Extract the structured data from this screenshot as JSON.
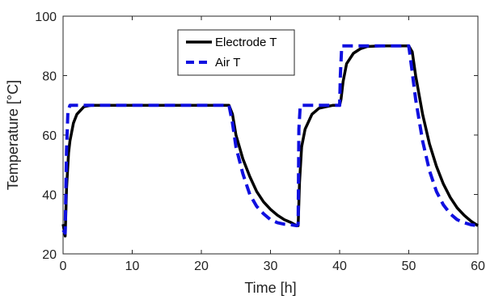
{
  "chart_data": {
    "type": "line",
    "title": "",
    "xlabel": "Time [h]",
    "ylabel": "Temperature [°C]",
    "xlim": [
      0,
      60
    ],
    "ylim": [
      20,
      100
    ],
    "xticks": [
      0,
      10,
      20,
      30,
      40,
      50,
      60
    ],
    "yticks": [
      20,
      40,
      60,
      80,
      100
    ],
    "grid": false,
    "legend_position": "top-center",
    "series": [
      {
        "name": "Electrode T",
        "color": "#000000",
        "style": "solid",
        "x": [
          0,
          0.3,
          0.5,
          0.8,
          1.0,
          1.5,
          2,
          3,
          4,
          6,
          24,
          24.5,
          25,
          26,
          27,
          28,
          29,
          30,
          31,
          32,
          33,
          33.8,
          34.0,
          34.2,
          34.5,
          35,
          36,
          37,
          38,
          39,
          40,
          40.2,
          40.5,
          41,
          42,
          43,
          44,
          46,
          48,
          50,
          50.5,
          51,
          52,
          53,
          54,
          55,
          56,
          57,
          58,
          59,
          60
        ],
        "y": [
          30,
          26,
          42,
          54,
          58,
          64,
          67,
          69.5,
          70,
          70,
          70,
          67,
          60,
          52,
          46,
          41,
          37.5,
          35,
          33,
          31.5,
          30.5,
          29.5,
          29.5,
          44,
          56,
          62,
          67,
          69,
          69.5,
          70,
          70,
          72,
          78,
          84,
          87.5,
          89,
          89.8,
          90,
          90,
          90,
          88,
          80,
          67,
          57,
          49.5,
          43.5,
          39,
          35.5,
          33,
          31,
          29.5
        ]
      },
      {
        "name": "Air T",
        "color": "#1010e0",
        "style": "dashed",
        "x": [
          0,
          0.3,
          0.5,
          0.7,
          1.0,
          24,
          24.5,
          25,
          26,
          27,
          28,
          29,
          30,
          31,
          32,
          33,
          33.8,
          34.0,
          34.1,
          34.3,
          40,
          40.1,
          40.3,
          50,
          50.4,
          51,
          52,
          53,
          54,
          55,
          56,
          57,
          58,
          59,
          60
        ],
        "y": [
          28,
          27,
          55,
          68,
          70,
          70,
          64,
          56,
          47,
          40,
          36,
          33.5,
          31.5,
          30.5,
          30,
          29.8,
          29.5,
          30,
          62,
          70,
          70,
          80,
          90,
          90,
          83,
          72,
          58,
          48,
          41,
          36.5,
          33.5,
          31.5,
          30.5,
          29.8,
          29.5
        ]
      }
    ]
  }
}
